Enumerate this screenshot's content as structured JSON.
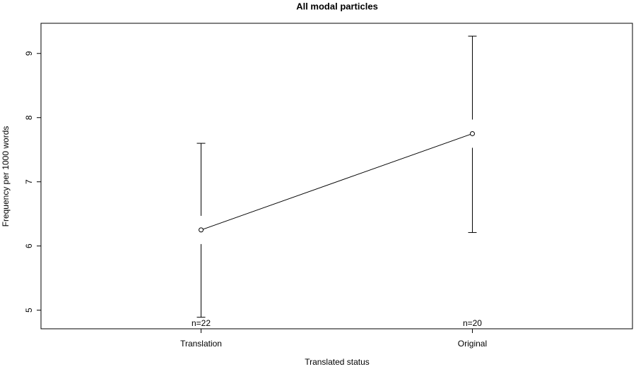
{
  "chart_data": {
    "type": "line",
    "title": "All modal particles",
    "x_label": "Translated status",
    "y_label": "Frequency per 1000 words",
    "categories": [
      "Translation",
      "Original"
    ],
    "values": [
      6.25,
      7.75
    ],
    "upper": [
      7.6,
      9.27
    ],
    "lower": [
      4.89,
      6.21
    ],
    "n_labels": [
      "n=22",
      "n=20"
    ],
    "color": "#000000",
    "ylim": [
      4.71,
      9.47
    ],
    "yticks": [
      5,
      6,
      7,
      8,
      9
    ],
    "grid": false
  }
}
